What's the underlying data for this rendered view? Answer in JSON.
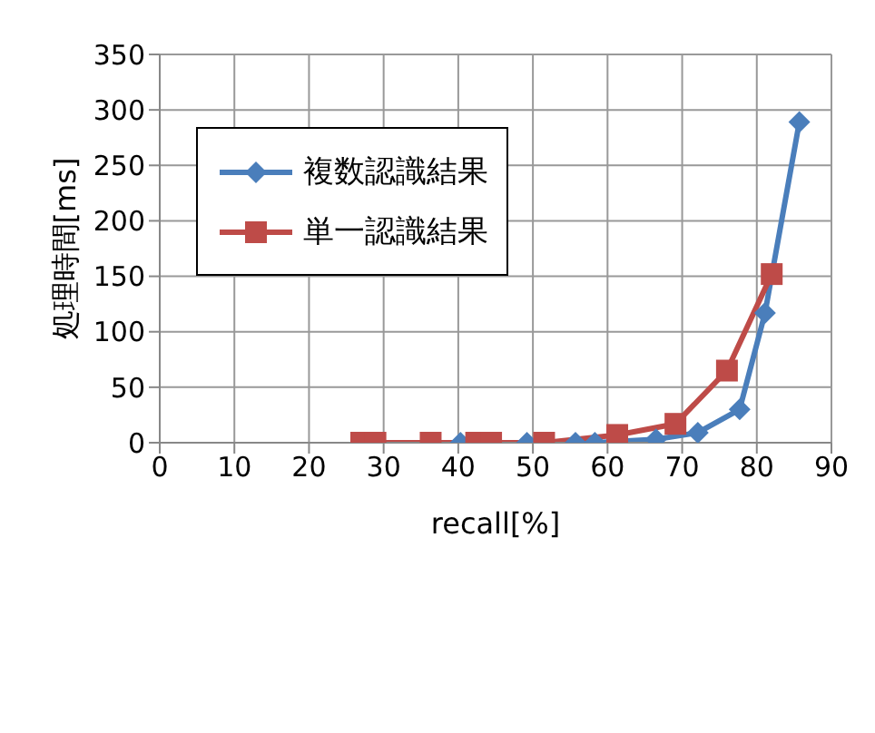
{
  "chart_data": {
    "type": "line",
    "xlabel": "recall[%]",
    "ylabel": "処理時間[ms]",
    "xlim": [
      0,
      90
    ],
    "xticks": [
      0,
      10,
      20,
      30,
      40,
      50,
      60,
      70,
      80,
      90
    ],
    "ylim": [
      0,
      350
    ],
    "yticks": [
      0,
      50,
      100,
      150,
      200,
      250,
      300,
      350
    ],
    "grid": true,
    "legend": "top left",
    "series": [
      {
        "name": "複数認識結果",
        "color": "#4a7ebb",
        "marker": "diamond",
        "x": [
          40.3,
          42.4,
          49.2,
          55.7,
          58.3,
          66.5,
          72.1,
          77.7,
          81.1,
          85.7
        ],
        "values": [
          0,
          0,
          0,
          0,
          0,
          3,
          9,
          30,
          117,
          289
        ]
      },
      {
        "name": "単一認識結果",
        "color": "#be4b48",
        "marker": "square",
        "x": [
          27,
          28.9,
          36.3,
          42.4,
          44.4,
          51.5,
          61.3,
          69.1,
          76,
          82
        ],
        "values": [
          0,
          0,
          0,
          0,
          0,
          0,
          7,
          17,
          65,
          152
        ]
      }
    ]
  }
}
